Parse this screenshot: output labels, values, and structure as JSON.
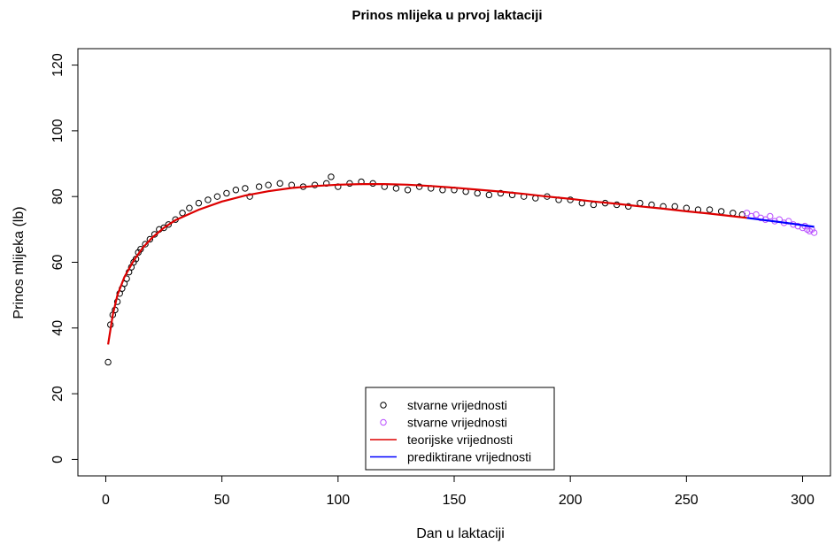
{
  "chart_data": {
    "type": "scatter",
    "title": "Prinos mlijeka u prvoj laktaciji",
    "xlabel": "Dan u laktaciji",
    "ylabel": "Prinos mlijeka (lb)",
    "xlim": [
      -12,
      312
    ],
    "ylim": [
      -5,
      125
    ],
    "xticks": [
      0,
      50,
      100,
      150,
      200,
      250,
      300
    ],
    "yticks": [
      0,
      20,
      40,
      60,
      80,
      100,
      120
    ],
    "grid": false,
    "legend_position": "bottom-center",
    "legend": [
      {
        "label": "stvarne vrijednosti",
        "kind": "point",
        "color": "#000000"
      },
      {
        "label": "stvarne vrijednosti",
        "kind": "point",
        "color": "#b84dff"
      },
      {
        "label": "teorijske vrijednosti",
        "kind": "line",
        "color": "#dd0000"
      },
      {
        "label": "prediktirane vrijednosti",
        "kind": "line",
        "color": "#0000ff"
      }
    ],
    "series": [
      {
        "label": "stvarne vrijednosti",
        "kind": "points",
        "color": "#000000",
        "points": [
          [
            1,
            29.6
          ],
          [
            2,
            41
          ],
          [
            3,
            44
          ],
          [
            4,
            45.5
          ],
          [
            5,
            48
          ],
          [
            6,
            50.5
          ],
          [
            7,
            52
          ],
          [
            8,
            53.5
          ],
          [
            9,
            55
          ],
          [
            10,
            57
          ],
          [
            11,
            58.5
          ],
          [
            12,
            60
          ],
          [
            13,
            61
          ],
          [
            14,
            63
          ],
          [
            15,
            64
          ],
          [
            17,
            65.5
          ],
          [
            19,
            67
          ],
          [
            21,
            68.5
          ],
          [
            23,
            70
          ],
          [
            25,
            70.5
          ],
          [
            27,
            71.5
          ],
          [
            30,
            73
          ],
          [
            33,
            75
          ],
          [
            36,
            76.5
          ],
          [
            40,
            78
          ],
          [
            44,
            79
          ],
          [
            48,
            80
          ],
          [
            52,
            81
          ],
          [
            56,
            82
          ],
          [
            60,
            82.5
          ],
          [
            62,
            80
          ],
          [
            66,
            83
          ],
          [
            70,
            83.5
          ],
          [
            75,
            84
          ],
          [
            80,
            83.5
          ],
          [
            85,
            83
          ],
          [
            90,
            83.5
          ],
          [
            95,
            84
          ],
          [
            97,
            86
          ],
          [
            100,
            83
          ],
          [
            105,
            84
          ],
          [
            110,
            84.5
          ],
          [
            115,
            84
          ],
          [
            120,
            83
          ],
          [
            125,
            82.5
          ],
          [
            130,
            82
          ],
          [
            135,
            83
          ],
          [
            140,
            82.5
          ],
          [
            145,
            82
          ],
          [
            150,
            82
          ],
          [
            155,
            81.5
          ],
          [
            160,
            81
          ],
          [
            165,
            80.5
          ],
          [
            170,
            81
          ],
          [
            175,
            80.5
          ],
          [
            180,
            80
          ],
          [
            185,
            79.5
          ],
          [
            190,
            80
          ],
          [
            195,
            79
          ],
          [
            200,
            79
          ],
          [
            205,
            78
          ],
          [
            210,
            77.5
          ],
          [
            215,
            78
          ],
          [
            220,
            77.5
          ],
          [
            225,
            77
          ],
          [
            230,
            78
          ],
          [
            235,
            77.5
          ],
          [
            240,
            77
          ],
          [
            245,
            77
          ],
          [
            250,
            76.5
          ],
          [
            255,
            76
          ],
          [
            260,
            76
          ],
          [
            265,
            75.5
          ],
          [
            270,
            75
          ],
          [
            274,
            74.5
          ]
        ]
      },
      {
        "label": "stvarne vrijednosti",
        "kind": "points",
        "color": "#b84dff",
        "points": [
          [
            276,
            75
          ],
          [
            278,
            74
          ],
          [
            280,
            74.5
          ],
          [
            282,
            73.5
          ],
          [
            284,
            73
          ],
          [
            286,
            74
          ],
          [
            288,
            72.5
          ],
          [
            290,
            73
          ],
          [
            292,
            72
          ],
          [
            294,
            72.5
          ],
          [
            296,
            71.5
          ],
          [
            298,
            71
          ],
          [
            300,
            70.5
          ],
          [
            301,
            71
          ],
          [
            302,
            70
          ],
          [
            303,
            69.5
          ],
          [
            304,
            70
          ],
          [
            305,
            69
          ]
        ]
      },
      {
        "label": "teorijske vrijednosti",
        "kind": "line",
        "color": "#dd0000",
        "points": [
          [
            1,
            35
          ],
          [
            3,
            44
          ],
          [
            5,
            50
          ],
          [
            8,
            55.5
          ],
          [
            12,
            60.5
          ],
          [
            16,
            64.5
          ],
          [
            20,
            67.5
          ],
          [
            25,
            70.5
          ],
          [
            30,
            72.8
          ],
          [
            40,
            76
          ],
          [
            50,
            78.5
          ],
          [
            60,
            80.3
          ],
          [
            70,
            81.6
          ],
          [
            80,
            82.6
          ],
          [
            90,
            83.2
          ],
          [
            100,
            83.6
          ],
          [
            110,
            83.8
          ],
          [
            120,
            83.8
          ],
          [
            130,
            83.6
          ],
          [
            140,
            83.2
          ],
          [
            150,
            82.7
          ],
          [
            160,
            82.1
          ],
          [
            170,
            81.5
          ],
          [
            180,
            80.8
          ],
          [
            190,
            80
          ],
          [
            200,
            79.3
          ],
          [
            210,
            78.5
          ],
          [
            220,
            77.8
          ],
          [
            230,
            77
          ],
          [
            240,
            76.3
          ],
          [
            250,
            75.5
          ],
          [
            260,
            74.8
          ],
          [
            270,
            74
          ],
          [
            276,
            73.5
          ]
        ]
      },
      {
        "label": "prediktirane vrijednosti",
        "kind": "line",
        "color": "#0000ff",
        "points": [
          [
            276,
            73.5
          ],
          [
            285,
            72.7
          ],
          [
            295,
            71.8
          ],
          [
            305,
            70.8
          ]
        ]
      }
    ]
  }
}
